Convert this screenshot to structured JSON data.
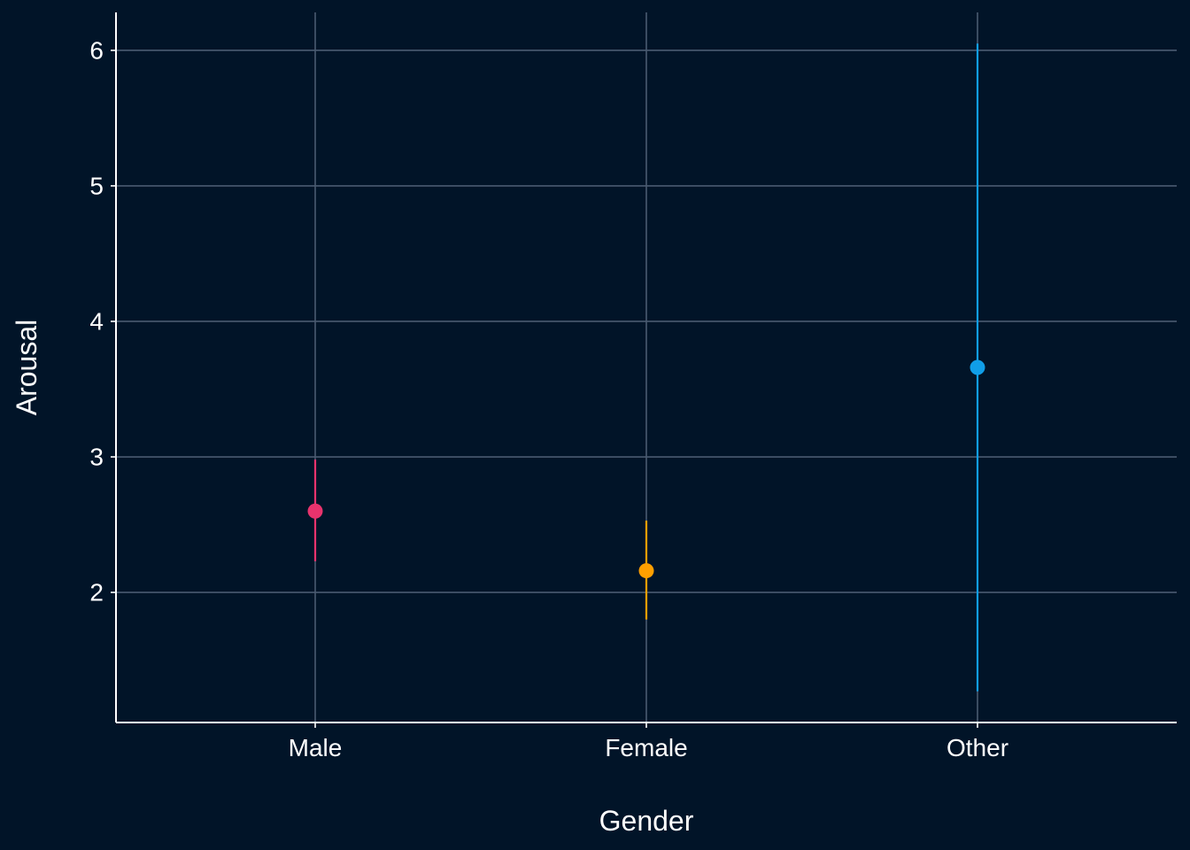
{
  "chart_data": {
    "type": "scatter",
    "subtype": "point-range",
    "title": "",
    "xlabel": "Gender",
    "ylabel": "Arousal",
    "categories": [
      "Male",
      "Female",
      "Other"
    ],
    "yticks": [
      2,
      3,
      4,
      5,
      6
    ],
    "ylim": [
      1.04,
      6.28
    ],
    "grid": true,
    "legend": "none",
    "points": [
      {
        "category": "Male",
        "value": 2.6,
        "lower": 2.23,
        "upper": 2.98,
        "color": "#e8336d"
      },
      {
        "category": "Female",
        "value": 2.16,
        "lower": 1.8,
        "upper": 2.53,
        "color": "#ff9f00"
      },
      {
        "category": "Other",
        "value": 3.66,
        "lower": 1.27,
        "upper": 6.05,
        "color": "#109ee8"
      }
    ]
  },
  "colors": {
    "background": "#011428",
    "grid": "#4a5a70",
    "axis": "#ffffff",
    "text": "#ffffff"
  }
}
